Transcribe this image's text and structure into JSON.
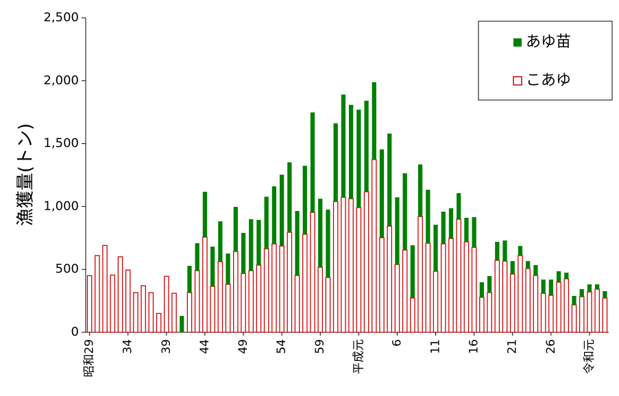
{
  "chart_data": {
    "type": "stacked_bar",
    "y_axis_label": "漁獲量(トン)",
    "categories": [
      "昭和29",
      null,
      null,
      null,
      null,
      "34",
      null,
      null,
      null,
      null,
      "39",
      null,
      null,
      null,
      null,
      "44",
      null,
      null,
      null,
      null,
      "49",
      null,
      null,
      null,
      null,
      "54",
      null,
      null,
      null,
      null,
      "59",
      null,
      null,
      null,
      null,
      "平成元",
      null,
      null,
      null,
      null,
      "6",
      null,
      null,
      null,
      null,
      "11",
      null,
      null,
      null,
      null,
      "16",
      null,
      null,
      null,
      null,
      "21",
      null,
      null,
      null,
      null,
      "26",
      null,
      null,
      null,
      null,
      "令和元",
      null,
      null
    ],
    "series": [
      {
        "name": "こあゆ",
        "color": "#cc0000",
        "values": [
          450,
          610,
          690,
          455,
          600,
          495,
          315,
          370,
          315,
          150,
          445,
          310,
          0,
          316,
          490,
          757,
          365,
          561,
          381,
          643,
          468,
          490,
          534,
          664,
          703,
          686,
          795,
          452,
          779,
          953,
          517,
          436,
          1040,
          1073,
          1062,
          991,
          1117,
          1373,
          752,
          844,
          539,
          654,
          272,
          920,
          708,
          485,
          703,
          746,
          899,
          719,
          675,
          278,
          316,
          572,
          566,
          463,
          610,
          507,
          452,
          310,
          294,
          398,
          425,
          218,
          283,
          321,
          343,
          272
        ]
      },
      {
        "name": "あゆ苗",
        "color": "#008000",
        "values": [
          0,
          0,
          0,
          0,
          0,
          0,
          0,
          0,
          0,
          0,
          0,
          0,
          130,
          212,
          218,
          360,
          316,
          321,
          245,
          354,
          322,
          409,
          359,
          414,
          457,
          567,
          556,
          512,
          545,
          795,
          545,
          539,
          621,
          817,
          746,
          779,
          724,
          615,
          702,
          736,
          534,
          610,
          420,
          414,
          425,
          370,
          256,
          240,
          207,
          191,
          240,
          120,
          131,
          147,
          164,
          103,
          76,
          59,
          82,
          109,
          125,
          87,
          49,
          71,
          60,
          60,
          38,
          55
        ]
      }
    ],
    "ylim": [
      0,
      2500
    ],
    "yticks": [
      0,
      500,
      {
        "value": 1000,
        "label": "1,000"
      },
      {
        "value": 1500,
        "label": "1,500"
      },
      {
        "value": 2000,
        "label": "2,000"
      },
      {
        "value": 2500,
        "label": "2,500"
      }
    ],
    "legend": "top-right"
  }
}
